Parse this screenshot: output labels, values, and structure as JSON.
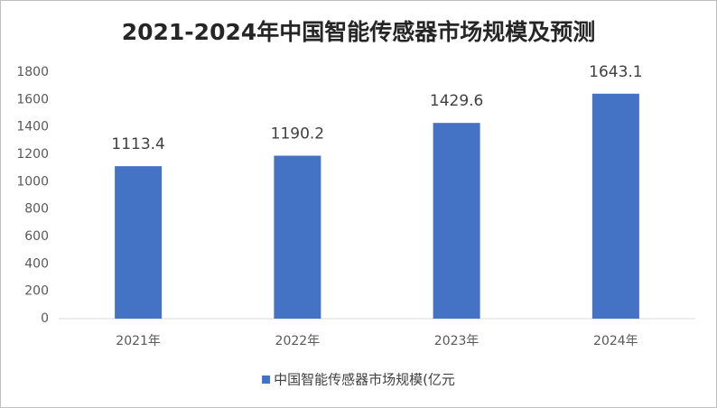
{
  "chart_data": {
    "type": "bar",
    "title": "2021-2024年中国智能传感器市场规模及预测",
    "categories": [
      "2021年",
      "2022年",
      "2023年",
      "2024年"
    ],
    "series": [
      {
        "name": "中国智能传感器市场规模(亿元",
        "color": "#4472c4",
        "values": [
          1113.4,
          1190.2,
          1429.6,
          1643.1
        ]
      }
    ],
    "ylim": [
      0,
      1800
    ],
    "yticks": [
      0,
      200,
      400,
      600,
      800,
      1000,
      1200,
      1400,
      1600,
      1800
    ],
    "grid": false
  }
}
